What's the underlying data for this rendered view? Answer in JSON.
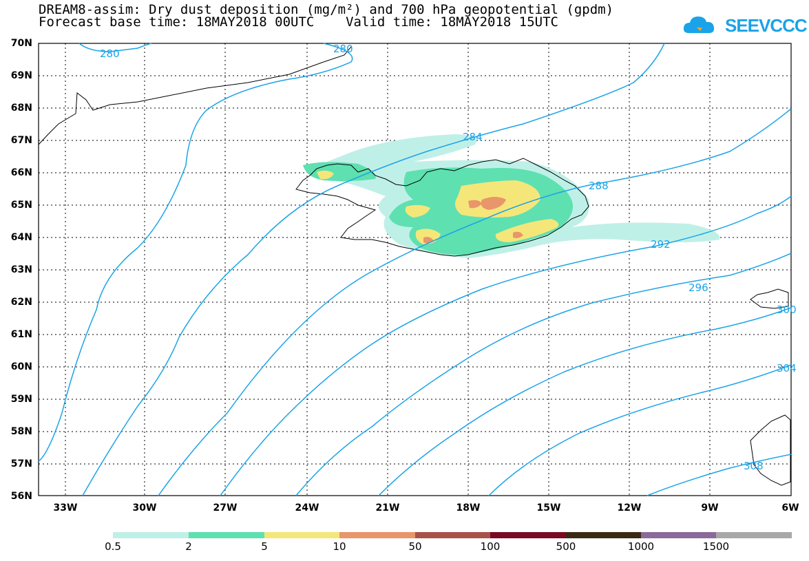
{
  "title": {
    "line1": "DREAM8-assim: Dry dust deposition (mg/m²) and 700 hPa geopotential (gpdm)",
    "line2": "Forecast base time: 18MAY2018 00UTC    Valid time: 18MAY2018 15UTC"
  },
  "logo": {
    "text": "SEEVCCC",
    "icon": "cloud-icon"
  },
  "lat_labels": [
    "70N",
    "69N",
    "68N",
    "67N",
    "66N",
    "65N",
    "64N",
    "63N",
    "62N",
    "61N",
    "60N",
    "59N",
    "58N",
    "57N",
    "56N"
  ],
  "lon_labels": [
    "33W",
    "30W",
    "27W",
    "24W",
    "21W",
    "18W",
    "15W",
    "12W",
    "9W",
    "6W"
  ],
  "contour_labels": [
    "280",
    "280",
    "284",
    "288",
    "292",
    "296",
    "300",
    "304",
    "308"
  ],
  "colorbar": {
    "labels": [
      "0.5",
      "2",
      "5",
      "10",
      "50",
      "100",
      "500",
      "1000",
      "1500"
    ],
    "colors": [
      "#bff0e8",
      "#5ee0b0",
      "#f5e67a",
      "#e8966a",
      "#a8524a",
      "#7a0a22",
      "#3a2a14",
      "#8a6a9a",
      "#a8a8a8"
    ]
  },
  "colors": {
    "contour": "#1aa3e8",
    "coast": "#000000"
  }
}
